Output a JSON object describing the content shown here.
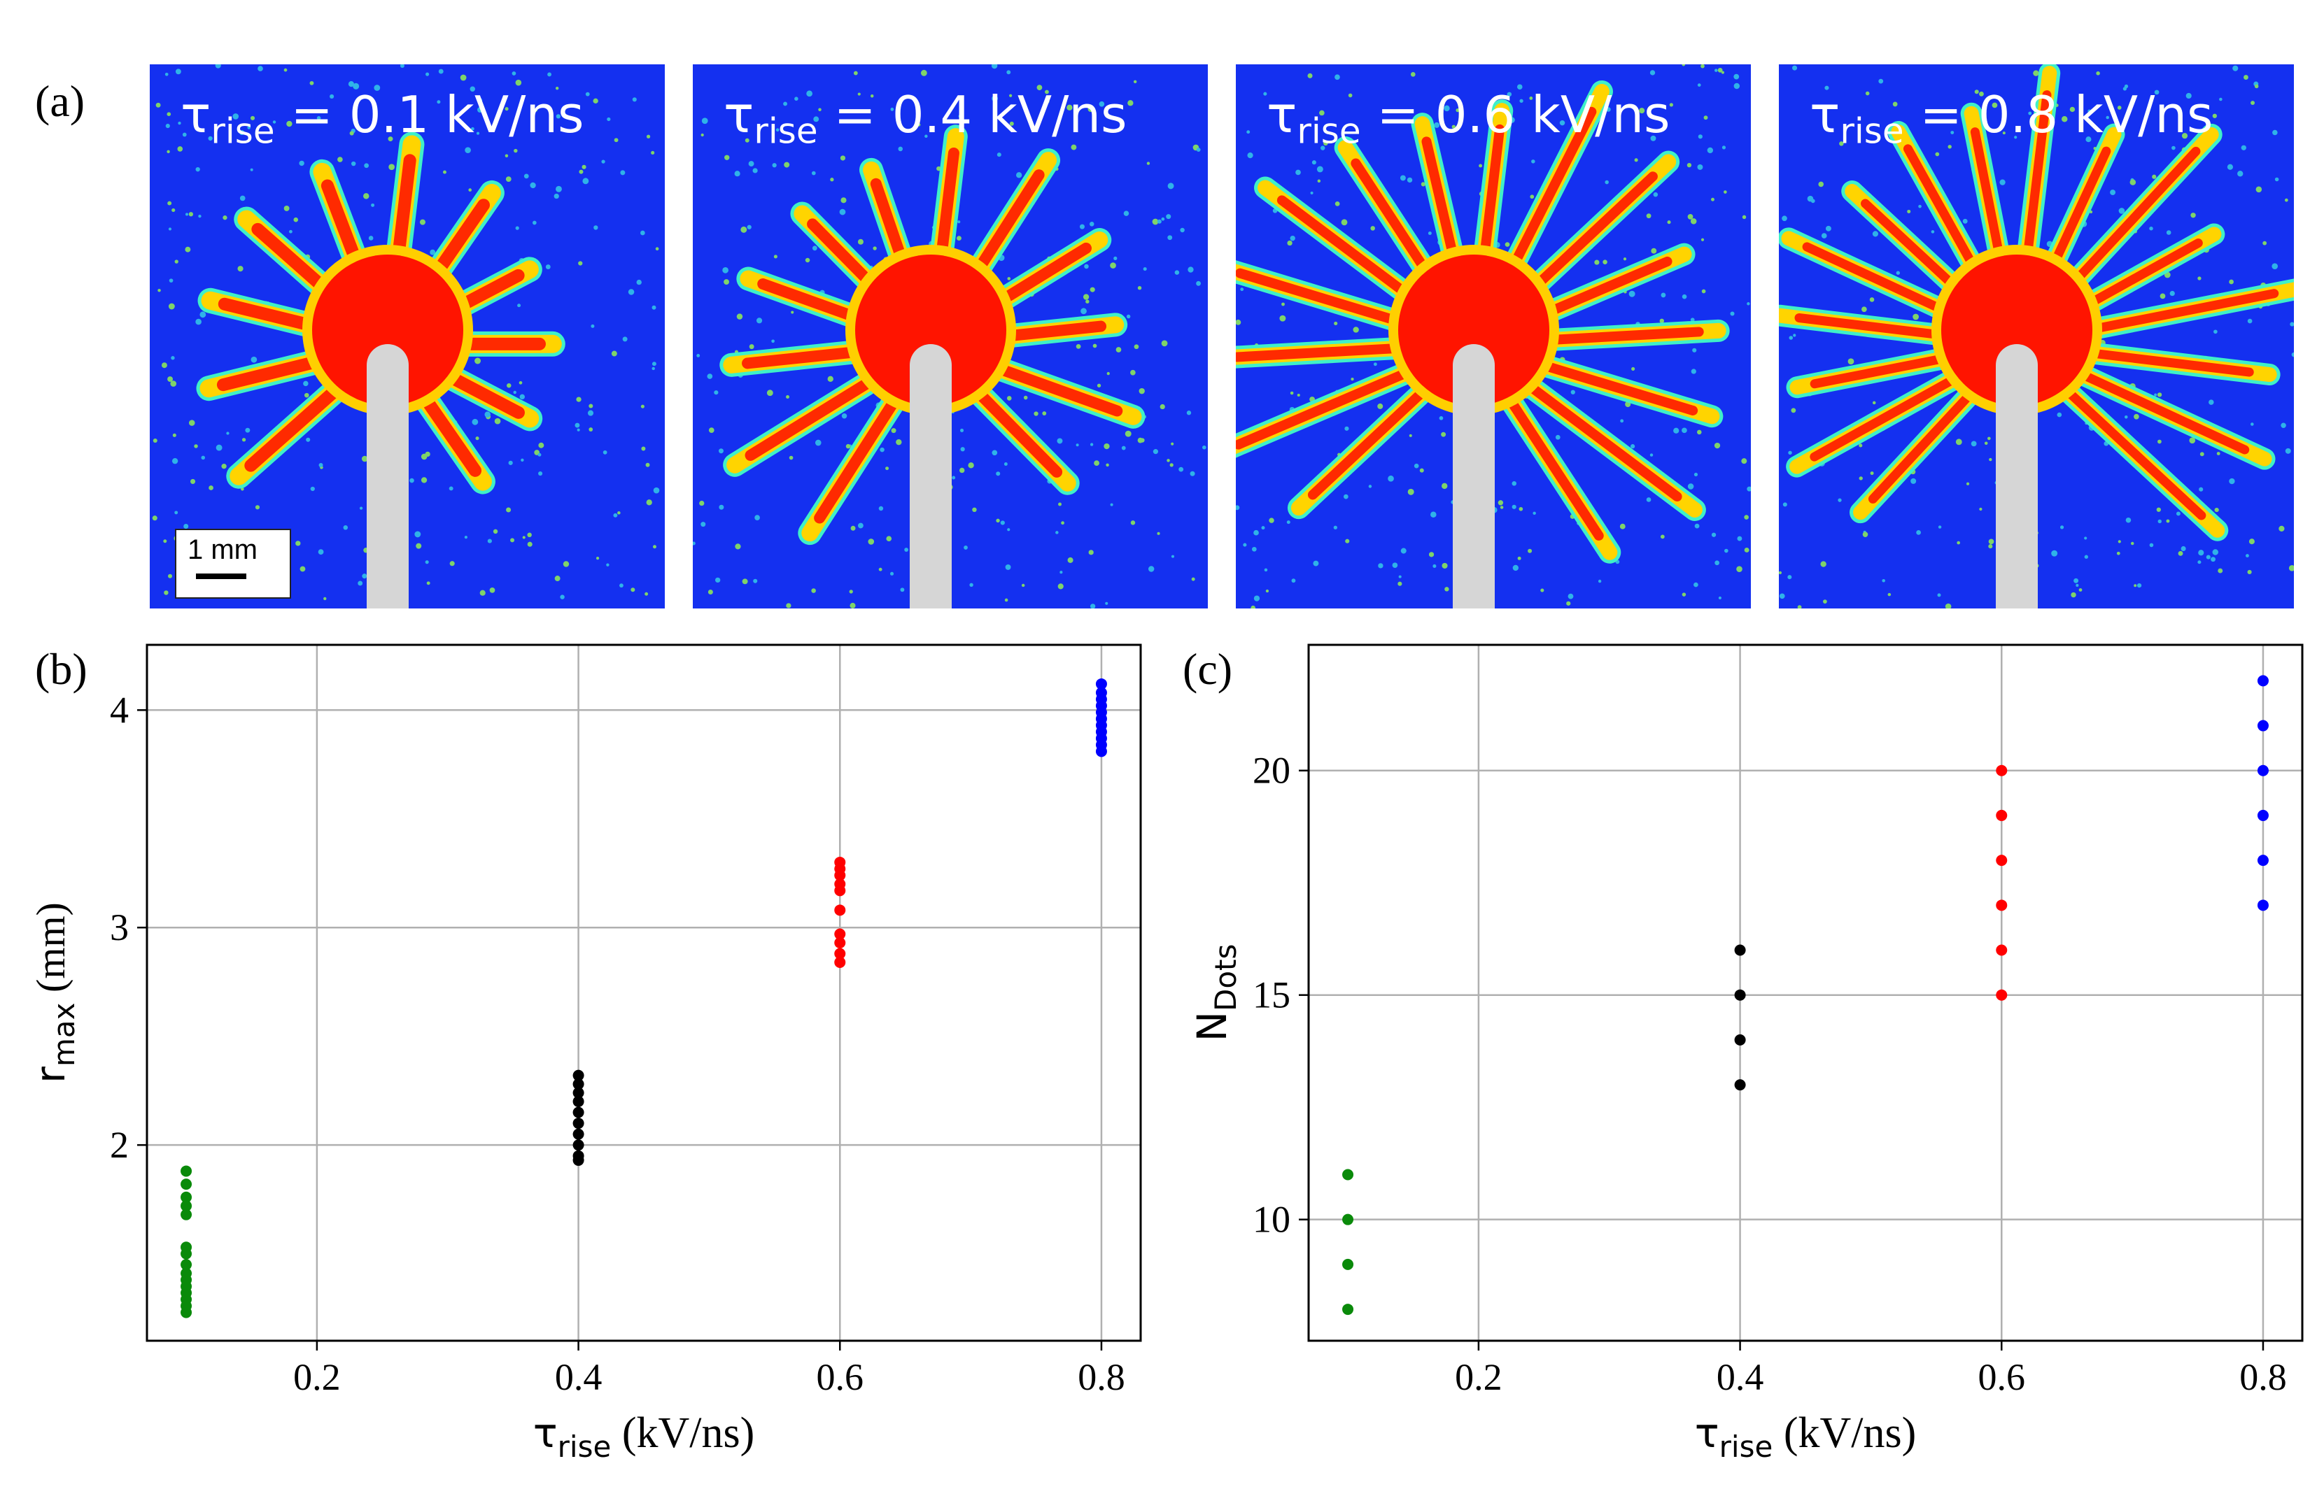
{
  "panel_labels": {
    "a": "(a)",
    "b": "(b)",
    "c": "(c)"
  },
  "images": [
    {
      "label_sym": "τ",
      "label_sub": "rise",
      "label_rest": " = 0.1 kV/ns",
      "streamers": 13,
      "reach": 0.55,
      "ray_width": 18
    },
    {
      "label_sym": "τ",
      "label_sub": "rise",
      "label_rest": " = 0.4 kV/ns",
      "streamers": 14,
      "reach": 0.7,
      "ray_width": 16
    },
    {
      "label_sym": "τ",
      "label_sub": "rise",
      "label_rest": " = 0.6 kV/ns",
      "streamers": 18,
      "reach": 1.0,
      "ray_width": 14
    },
    {
      "label_sym": "τ",
      "label_sub": "rise",
      "label_rest": " = 0.8 kV/ns",
      "streamers": 20,
      "reach": 1.0,
      "ray_width": 13
    }
  ],
  "scale_bar": {
    "text": "1 mm"
  },
  "colors": {
    "green": "#0a8a0a",
    "black": "#000000",
    "red": "#ff0000",
    "blue": "#0000ff",
    "field_blue": "#1430f0"
  },
  "chart_data": [
    {
      "type": "scatter",
      "title": "",
      "xlabel": {
        "sym": "τ",
        "sub": "rise",
        "rest": " (kV/ns)"
      },
      "ylabel": {
        "sym": "r",
        "sub": "max",
        "rest": " (mm)"
      },
      "xlim": [
        0.07,
        0.83
      ],
      "ylim": [
        1.1,
        4.3
      ],
      "xticks": [
        0.2,
        0.4,
        0.6,
        0.8
      ],
      "xtick_labels": [
        "0.2",
        "0.4",
        "0.6",
        "0.8"
      ],
      "yticks": [
        2,
        3,
        4
      ],
      "ytick_labels": [
        "2",
        "3",
        "4"
      ],
      "grid": true,
      "series": [
        {
          "color": "#0a8a0a",
          "x": 0.1,
          "y": [
            1.23,
            1.26,
            1.29,
            1.32,
            1.35,
            1.38,
            1.41,
            1.45,
            1.5,
            1.53,
            1.68,
            1.72,
            1.76,
            1.82,
            1.88
          ]
        },
        {
          "color": "#000000",
          "x": 0.4,
          "y": [
            1.93,
            1.95,
            2.0,
            2.05,
            2.1,
            2.15,
            2.2,
            2.24,
            2.28,
            2.32
          ]
        },
        {
          "color": "#ff0000",
          "x": 0.6,
          "y": [
            2.84,
            2.88,
            2.93,
            2.97,
            3.08,
            3.17,
            3.2,
            3.24,
            3.27,
            3.3
          ]
        },
        {
          "color": "#0000ff",
          "x": 0.8,
          "y": [
            3.81,
            3.84,
            3.87,
            3.9,
            3.93,
            3.96,
            3.99,
            4.02,
            4.05,
            4.08,
            4.12
          ]
        }
      ]
    },
    {
      "type": "scatter",
      "title": "",
      "xlabel": {
        "sym": "τ",
        "sub": "rise",
        "rest": " (kV/ns)"
      },
      "ylabel": {
        "sym": "N",
        "sub": "Dots",
        "rest": ""
      },
      "xlim": [
        0.07,
        0.83
      ],
      "ylim": [
        7.3,
        22.8
      ],
      "xticks": [
        0.2,
        0.4,
        0.6,
        0.8
      ],
      "xtick_labels": [
        "0.2",
        "0.4",
        "0.6",
        "0.8"
      ],
      "yticks": [
        10,
        15,
        20
      ],
      "ytick_labels": [
        "10",
        "15",
        "20"
      ],
      "grid": true,
      "series": [
        {
          "color": "#0a8a0a",
          "x": 0.1,
          "y": [
            8,
            9,
            10,
            11
          ]
        },
        {
          "color": "#000000",
          "x": 0.4,
          "y": [
            13,
            14,
            15,
            16
          ]
        },
        {
          "color": "#ff0000",
          "x": 0.6,
          "y": [
            15,
            16,
            17,
            18,
            19,
            20
          ]
        },
        {
          "color": "#0000ff",
          "x": 0.8,
          "y": [
            17,
            18,
            19,
            20,
            21,
            22
          ]
        }
      ]
    }
  ]
}
